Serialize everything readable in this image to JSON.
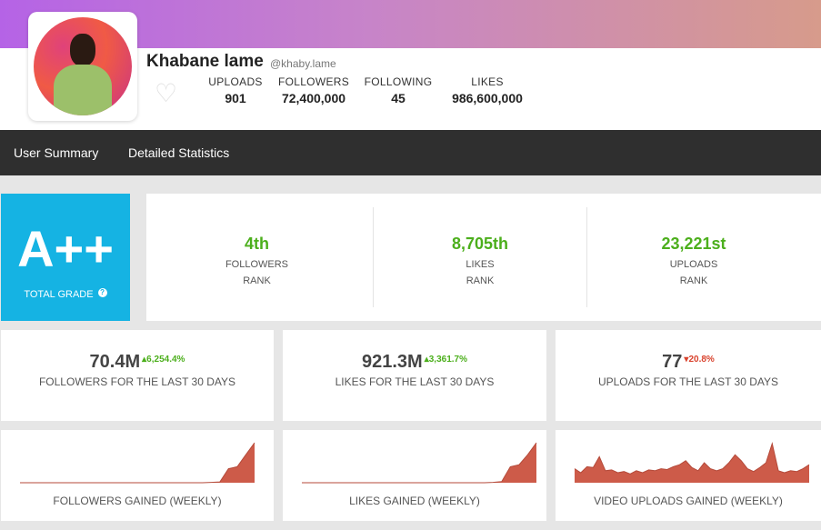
{
  "profile": {
    "name": "Khabane lame",
    "handle": "@khaby.lame",
    "stats": [
      {
        "label": "UPLOADS",
        "value": "901"
      },
      {
        "label": "FOLLOWERS",
        "value": "72,400,000"
      },
      {
        "label": "FOLLOWING",
        "value": "45"
      },
      {
        "label": "LIKES",
        "value": "986,600,000"
      }
    ]
  },
  "nav": {
    "items": [
      "User Summary",
      "Detailed Statistics"
    ]
  },
  "grade": {
    "value": "A++",
    "label": "TOTAL GRADE",
    "help_icon": "?"
  },
  "ranks": [
    {
      "value": "4th",
      "label": "FOLLOWERS",
      "sub": "RANK"
    },
    {
      "value": "8,705th",
      "label": "LIKES",
      "sub": "RANK"
    },
    {
      "value": "23,221st",
      "label": "UPLOADS",
      "sub": "RANK"
    }
  ],
  "growth": [
    {
      "value": "70.4M",
      "change": "6,254.4%",
      "direction": "up",
      "label": "FOLLOWERS FOR THE LAST 30 DAYS"
    },
    {
      "value": "921.3M",
      "change": "3,361.7%",
      "direction": "up",
      "label": "LIKES FOR THE LAST 30 DAYS"
    },
    {
      "value": "77",
      "change": "20.8%",
      "direction": "down",
      "label": "UPLOADS FOR THE LAST 30 DAYS"
    }
  ],
  "colors": {
    "accent": "#15b3e3",
    "positive": "#4caf1c",
    "negative": "#d9422d",
    "chart_fill": "#cd5b49"
  },
  "chart_data": [
    {
      "type": "area",
      "title": "FOLLOWERS GAINED (WEEKLY)",
      "values": [
        0,
        0,
        0,
        0,
        0,
        0,
        0,
        0,
        0,
        0,
        0,
        0,
        0,
        0,
        0,
        0,
        0,
        0,
        0,
        0,
        0,
        0,
        0.01,
        0.02,
        0.35,
        0.4,
        0.7,
        1
      ]
    },
    {
      "type": "area",
      "title": "LIKES GAINED (WEEKLY)",
      "values": [
        0,
        0,
        0,
        0,
        0,
        0,
        0,
        0,
        0,
        0,
        0,
        0,
        0,
        0,
        0,
        0,
        0,
        0,
        0,
        0,
        0,
        0,
        0.01,
        0.03,
        0.4,
        0.45,
        0.7,
        1
      ]
    },
    {
      "type": "area",
      "title": "VIDEO UPLOADS GAINED (WEEKLY)",
      "values": [
        0.35,
        0.25,
        0.4,
        0.38,
        0.65,
        0.3,
        0.32,
        0.25,
        0.28,
        0.22,
        0.3,
        0.25,
        0.32,
        0.3,
        0.35,
        0.33,
        0.4,
        0.45,
        0.55,
        0.38,
        0.3,
        0.5,
        0.35,
        0.3,
        0.35,
        0.5,
        0.7,
        0.55,
        0.35,
        0.28,
        0.38,
        0.5,
        0.98,
        0.3,
        0.25,
        0.3,
        0.28,
        0.35,
        0.45
      ]
    }
  ]
}
